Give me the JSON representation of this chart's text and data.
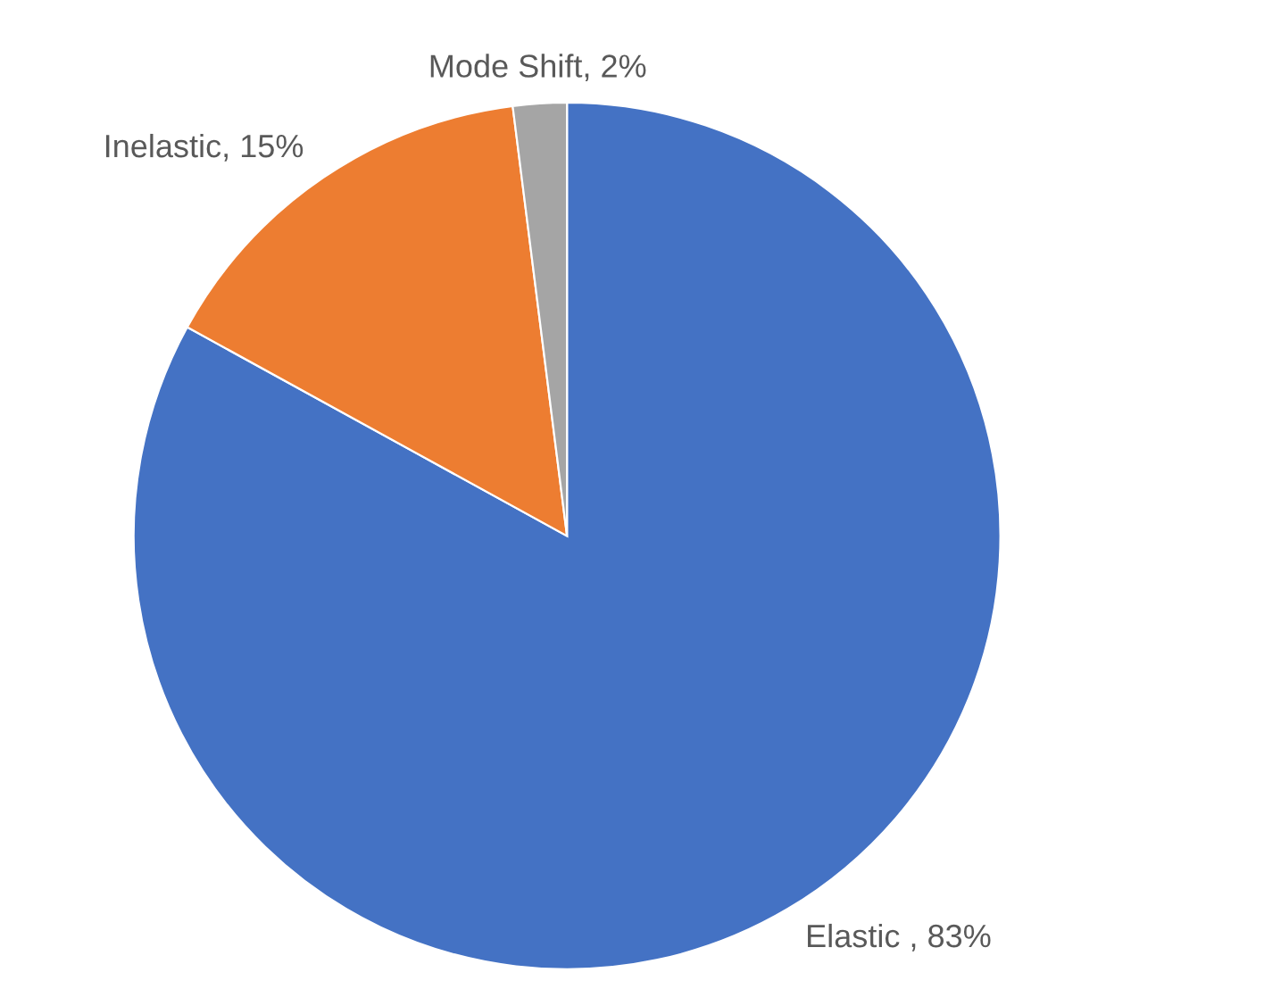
{
  "chart_data": {
    "type": "pie",
    "categories": [
      "Elastic ",
      "Inelastic",
      "Mode Shift"
    ],
    "values": [
      83,
      15,
      2
    ],
    "value_labels": [
      "83%",
      "15%",
      "2%"
    ],
    "colors": [
      "#4472c4",
      "#ed7d31",
      "#a5a5a5"
    ]
  }
}
